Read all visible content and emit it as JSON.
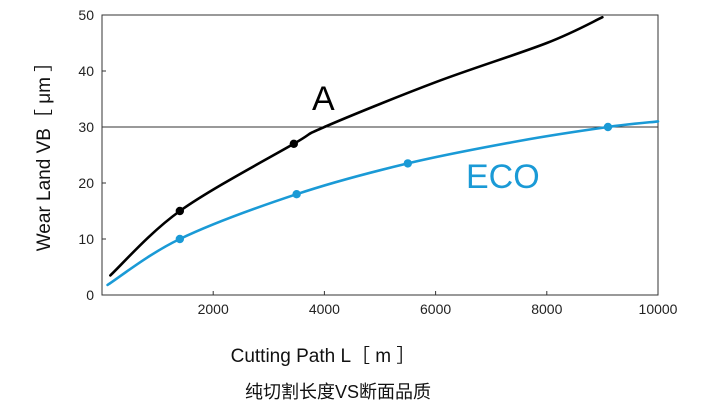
{
  "chart_data": {
    "type": "line",
    "xlabel": "Cutting Path L［ m ］",
    "ylabel": "Wear Land VB［ μm ］",
    "caption": "纯切割长度VS断面品质",
    "xlim": [
      0,
      10000
    ],
    "ylim": [
      0,
      50
    ],
    "x_ticks": [
      "2000",
      "4000",
      "6000",
      "8000",
      "10000"
    ],
    "y_ticks": [
      "0",
      "10",
      "20",
      "30",
      "40",
      "50"
    ],
    "reference_line": {
      "y": 30
    },
    "grid": false,
    "series": [
      {
        "name": "A",
        "color": "#000000",
        "curve": [
          [
            150,
            3.5
          ],
          [
            1400,
            15
          ],
          [
            3450,
            27
          ],
          [
            4000,
            30
          ],
          [
            6000,
            38
          ],
          [
            8000,
            45
          ],
          [
            9000,
            49.6
          ]
        ],
        "points": [
          [
            1400,
            15
          ],
          [
            3450,
            27
          ]
        ]
      },
      {
        "name": "ECO",
        "color": "#1a9ad6",
        "curve": [
          [
            100,
            1.8
          ],
          [
            1400,
            10
          ],
          [
            3500,
            18
          ],
          [
            5500,
            23.5
          ],
          [
            7500,
            27.5
          ],
          [
            9100,
            30
          ],
          [
            10000,
            31
          ]
        ],
        "points": [
          [
            1400,
            10
          ],
          [
            3500,
            18
          ],
          [
            5500,
            23.5
          ],
          [
            9100,
            30
          ]
        ]
      }
    ]
  }
}
